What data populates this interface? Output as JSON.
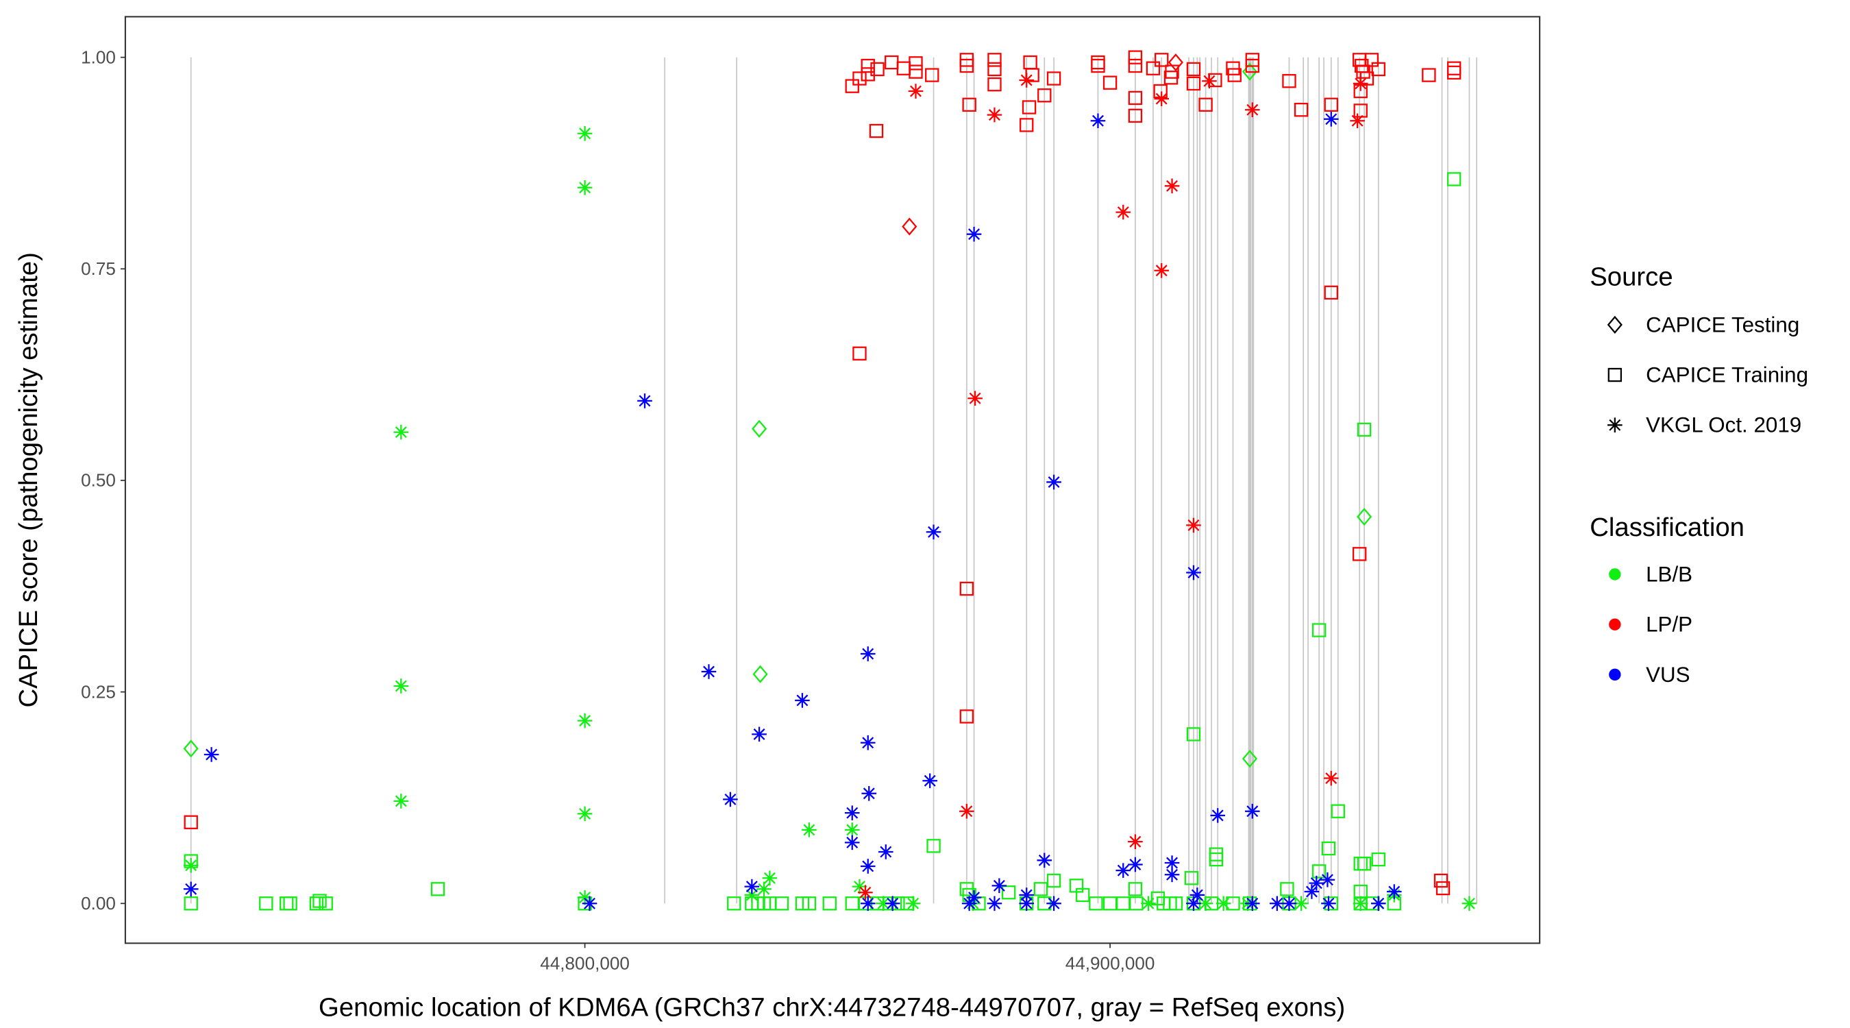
{
  "chart_data": {
    "type": "scatter",
    "title": "",
    "xlabel": "Genomic location of KDM6A (GRCh37 chrX:44732748-44970707, gray = RefSeq exons)",
    "ylabel": "CAPICE score (pathogenicity estimate)",
    "xlim": [
      44712500,
      44981800
    ],
    "ylim": [
      -0.047,
      1.048
    ],
    "x_ticks": [
      44800000,
      44900000
    ],
    "x_tick_labels": [
      "44,800,000",
      "44,900,000"
    ],
    "y_ticks": [
      0,
      0.25,
      0.5,
      0.75,
      1.0
    ],
    "y_tick_labels": [
      "0.00",
      "0.25",
      "0.50",
      "0.75",
      "1.00"
    ],
    "grid": false,
    "legend_placement": "right",
    "legend": {
      "source_title": "Source",
      "sources": [
        {
          "label": "CAPICE Testing",
          "shape": "diamond"
        },
        {
          "label": "CAPICE Training",
          "shape": "square"
        },
        {
          "label": "VKGL Oct. 2019",
          "shape": "asterisk"
        }
      ],
      "class_title": "Classification",
      "classes": [
        {
          "label": "LB/B",
          "color": "#11ee11"
        },
        {
          "label": "LP/P",
          "color": "#ff0000"
        },
        {
          "label": "VUS",
          "color": "#0000ff"
        }
      ]
    },
    "exons": [
      44725000,
      44815200,
      44828900,
      44866400,
      44872700,
      44874100,
      44884100,
      44887500,
      44889300,
      44897700,
      44904800,
      44908200,
      44909800,
      44915000,
      44915900,
      44916600,
      44917100,
      44918200,
      44919300,
      44920500,
      44923400,
      44926400,
      44926600,
      44926800,
      44927100,
      44927300,
      44934100,
      44936800,
      44937700,
      44939800,
      44940700,
      44942100,
      44943400,
      44947500,
      44948400,
      44951100,
      44963200,
      44964300,
      44968400,
      44969800
    ],
    "point_fields": [
      "position",
      "score",
      "source_index",
      "class_index"
    ],
    "points": [
      [
        44725000,
        0.183,
        0,
        0
      ],
      [
        44725000,
        0.05,
        1,
        0
      ],
      [
        44725000,
        0,
        1,
        0
      ],
      [
        44725000,
        0.045,
        2,
        0
      ],
      [
        44739300,
        0,
        1,
        0
      ],
      [
        44743200,
        0,
        1,
        0
      ],
      [
        44743900,
        0,
        1,
        0
      ],
      [
        44748900,
        0,
        1,
        0
      ],
      [
        44749500,
        0.003,
        1,
        0
      ],
      [
        44750700,
        0,
        1,
        0
      ],
      [
        44765000,
        0.557,
        2,
        0
      ],
      [
        44765000,
        0.257,
        2,
        0
      ],
      [
        44765000,
        0.121,
        2,
        0
      ],
      [
        44772000,
        0.017,
        1,
        0
      ],
      [
        44800000,
        0.91,
        2,
        0
      ],
      [
        44800000,
        0.846,
        2,
        0
      ],
      [
        44800000,
        0.216,
        2,
        0
      ],
      [
        44800000,
        0.106,
        2,
        0
      ],
      [
        44800000,
        0.007,
        2,
        0
      ],
      [
        44800000,
        0,
        1,
        0
      ],
      [
        44833200,
        0.561,
        0,
        0
      ],
      [
        44833400,
        0.271,
        0,
        0
      ],
      [
        44828400,
        0,
        1,
        0
      ],
      [
        44831800,
        0,
        1,
        0
      ],
      [
        44833000,
        0,
        1,
        0
      ],
      [
        44834100,
        0,
        1,
        0
      ],
      [
        44835200,
        0,
        1,
        0
      ],
      [
        44837500,
        0,
        1,
        0
      ],
      [
        44841400,
        0,
        1,
        0
      ],
      [
        44842700,
        0,
        1,
        0
      ],
      [
        44846600,
        0,
        1,
        0
      ],
      [
        44835200,
        0.03,
        2,
        0
      ],
      [
        44831800,
        0.01,
        2,
        0
      ],
      [
        44834100,
        0.017,
        2,
        0
      ],
      [
        44842700,
        0.087,
        2,
        0
      ],
      [
        44850900,
        0.087,
        2,
        0
      ],
      [
        44852300,
        0.02,
        2,
        0
      ],
      [
        44850900,
        0,
        1,
        0
      ],
      [
        44853400,
        0,
        1,
        0
      ],
      [
        44855700,
        0,
        1,
        0
      ],
      [
        44858000,
        0,
        1,
        0
      ],
      [
        44859600,
        0,
        1,
        0
      ],
      [
        44861400,
        0,
        1,
        0
      ],
      [
        44856800,
        0,
        2,
        0
      ],
      [
        44862500,
        0,
        2,
        0
      ],
      [
        44866400,
        0.068,
        1,
        0
      ],
      [
        44872700,
        0.017,
        1,
        0
      ],
      [
        44873200,
        0.01,
        1,
        0
      ],
      [
        44873900,
        0,
        2,
        0
      ],
      [
        44875000,
        0,
        1,
        0
      ],
      [
        44880700,
        0.013,
        1,
        0
      ],
      [
        44884100,
        0,
        1,
        0
      ],
      [
        44886800,
        0.017,
        1,
        0
      ],
      [
        44889300,
        0.027,
        1,
        0
      ],
      [
        44887500,
        0,
        1,
        0
      ],
      [
        44893600,
        0.021,
        1,
        0
      ],
      [
        44894800,
        0.01,
        1,
        0
      ],
      [
        44897300,
        0,
        1,
        0
      ],
      [
        44900000,
        0,
        1,
        0
      ],
      [
        44902500,
        0,
        1,
        0
      ],
      [
        44904800,
        0.017,
        1,
        0
      ],
      [
        44905000,
        0,
        1,
        0
      ],
      [
        44907300,
        0,
        2,
        0
      ],
      [
        44909100,
        0.006,
        1,
        0
      ],
      [
        44910200,
        0,
        1,
        0
      ],
      [
        44911400,
        0,
        1,
        0
      ],
      [
        44912500,
        0,
        1,
        0
      ],
      [
        44915500,
        0.03,
        1,
        0
      ],
      [
        44915900,
        0.2,
        1,
        0
      ],
      [
        44915900,
        0,
        1,
        0
      ],
      [
        44920200,
        0.058,
        1,
        0
      ],
      [
        44920200,
        0.052,
        1,
        0
      ],
      [
        44919300,
        0,
        1,
        0
      ],
      [
        44918200,
        0,
        2,
        0
      ],
      [
        44923400,
        0,
        1,
        0
      ],
      [
        44921600,
        0,
        2,
        0
      ],
      [
        44926600,
        0.171,
        0,
        0
      ],
      [
        44926600,
        0.983,
        0,
        0
      ],
      [
        44926600,
        0,
        1,
        0
      ],
      [
        44926200,
        0,
        2,
        0
      ],
      [
        44933700,
        0.017,
        1,
        0
      ],
      [
        44934100,
        0,
        1,
        0
      ],
      [
        44936400,
        0,
        2,
        0
      ],
      [
        44939800,
        0.323,
        1,
        0
      ],
      [
        44939800,
        0.038,
        1,
        0
      ],
      [
        44941600,
        0.065,
        1,
        0
      ],
      [
        44943400,
        0.109,
        1,
        0
      ],
      [
        44942100,
        0,
        1,
        0
      ],
      [
        44948400,
        0.56,
        1,
        0
      ],
      [
        44948400,
        0.457,
        0,
        0
      ],
      [
        44947700,
        0.047,
        1,
        0
      ],
      [
        44948400,
        0.047,
        1,
        0
      ],
      [
        44951100,
        0.052,
        1,
        0
      ],
      [
        44947700,
        0.014,
        1,
        0
      ],
      [
        44947700,
        0,
        1,
        0
      ],
      [
        44950000,
        0,
        1,
        0
      ],
      [
        44954100,
        0,
        1,
        0
      ],
      [
        44954100,
        0.01,
        2,
        0
      ],
      [
        44947700,
        0,
        2,
        0
      ],
      [
        44951100,
        0,
        2,
        0
      ],
      [
        44965500,
        0.856,
        1,
        0
      ],
      [
        44968400,
        0,
        2,
        0
      ],
      [
        44725000,
        0.096,
        1,
        1
      ],
      [
        44852300,
        0.65,
        1,
        1
      ],
      [
        44853400,
        0.013,
        2,
        1
      ],
      [
        44861800,
        0.8,
        0,
        1
      ],
      [
        44863000,
        0.96,
        2,
        1
      ],
      [
        44855500,
        0.913,
        1,
        1
      ],
      [
        44850900,
        0.966,
        1,
        1
      ],
      [
        44852300,
        0.975,
        1,
        1
      ],
      [
        44853900,
        0.99,
        1,
        1
      ],
      [
        44853900,
        0.98,
        1,
        1
      ],
      [
        44855700,
        0.986,
        1,
        1
      ],
      [
        44858400,
        0.994,
        1,
        1
      ],
      [
        44860700,
        0.987,
        1,
        1
      ],
      [
        44863000,
        0.993,
        1,
        1
      ],
      [
        44863000,
        0.983,
        1,
        1
      ],
      [
        44866100,
        0.979,
        1,
        1
      ],
      [
        44872700,
        0.997,
        1,
        1
      ],
      [
        44872700,
        0.99,
        1,
        1
      ],
      [
        44873200,
        0.944,
        1,
        1
      ],
      [
        44878000,
        0.997,
        1,
        1
      ],
      [
        44878000,
        0.986,
        1,
        1
      ],
      [
        44878000,
        0.968,
        1,
        1
      ],
      [
        44884100,
        0.92,
        1,
        1
      ],
      [
        44884600,
        0.941,
        1,
        1
      ],
      [
        44884800,
        0.994,
        1,
        1
      ],
      [
        44885200,
        0.979,
        1,
        1
      ],
      [
        44887500,
        0.955,
        1,
        1
      ],
      [
        44889300,
        0.975,
        1,
        1
      ],
      [
        44897700,
        0.994,
        1,
        1
      ],
      [
        44897700,
        0.99,
        1,
        1
      ],
      [
        44900000,
        0.97,
        1,
        1
      ],
      [
        44904800,
        1.0,
        1,
        1
      ],
      [
        44904800,
        0.99,
        1,
        1
      ],
      [
        44904800,
        0.952,
        1,
        1
      ],
      [
        44904800,
        0.931,
        1,
        1
      ],
      [
        44908200,
        0.987,
        1,
        1
      ],
      [
        44909600,
        0.96,
        1,
        1
      ],
      [
        44909800,
        0.997,
        1,
        1
      ],
      [
        44911600,
        0.976,
        1,
        1
      ],
      [
        44911800,
        0.983,
        1,
        1
      ],
      [
        44912500,
        0.994,
        0,
        1
      ],
      [
        44915900,
        0.986,
        1,
        1
      ],
      [
        44915900,
        0.969,
        1,
        1
      ],
      [
        44918200,
        0.944,
        1,
        1
      ],
      [
        44920000,
        0.973,
        1,
        1
      ],
      [
        44923400,
        0.987,
        1,
        1
      ],
      [
        44923700,
        0.979,
        1,
        1
      ],
      [
        44927100,
        0.997,
        1,
        1
      ],
      [
        44927100,
        0.99,
        1,
        1
      ],
      [
        44934100,
        0.972,
        1,
        1
      ],
      [
        44936400,
        0.938,
        1,
        1
      ],
      [
        44942100,
        0.944,
        1,
        1
      ],
      [
        44947500,
        0.997,
        1,
        1
      ],
      [
        44947900,
        0.99,
        1,
        1
      ],
      [
        44948200,
        0.983,
        1,
        1
      ],
      [
        44948900,
        0.975,
        1,
        1
      ],
      [
        44949800,
        0.997,
        1,
        1
      ],
      [
        44951100,
        0.986,
        1,
        1
      ],
      [
        44947700,
        0.96,
        1,
        1
      ],
      [
        44947700,
        0.937,
        1,
        1
      ],
      [
        44960700,
        0.979,
        1,
        1
      ],
      [
        44965500,
        0.987,
        1,
        1
      ],
      [
        44965500,
        0.982,
        1,
        1
      ],
      [
        44963000,
        0.027,
        1,
        1
      ],
      [
        44963400,
        0.018,
        1,
        1
      ],
      [
        44872700,
        0.372,
        1,
        1
      ],
      [
        44872700,
        0.221,
        1,
        1
      ],
      [
        44874300,
        0.597,
        2,
        1
      ],
      [
        44872700,
        0.109,
        2,
        1
      ],
      [
        44884100,
        0.973,
        2,
        1
      ],
      [
        44878000,
        0.932,
        2,
        1
      ],
      [
        44902500,
        0.817,
        2,
        1
      ],
      [
        44911800,
        0.848,
        2,
        1
      ],
      [
        44909800,
        0.748,
        2,
        1
      ],
      [
        44909800,
        0.951,
        2,
        1
      ],
      [
        44918900,
        0.972,
        2,
        1
      ],
      [
        44927100,
        0.938,
        2,
        1
      ],
      [
        44915900,
        0.447,
        2,
        1
      ],
      [
        44904800,
        0.073,
        2,
        1
      ],
      [
        44942100,
        0.148,
        2,
        1
      ],
      [
        44947100,
        0.925,
        2,
        1
      ],
      [
        44947700,
        0.969,
        2,
        1
      ],
      [
        44942100,
        0.722,
        1,
        1
      ],
      [
        44947500,
        0.413,
        1,
        1
      ],
      [
        44725000,
        0.017,
        2,
        2
      ],
      [
        44728900,
        0.176,
        2,
        2
      ],
      [
        44800900,
        0,
        2,
        2
      ],
      [
        44811400,
        0.594,
        2,
        2
      ],
      [
        44823600,
        0.274,
        2,
        2
      ],
      [
        44827700,
        0.123,
        2,
        2
      ],
      [
        44833200,
        0.2,
        2,
        2
      ],
      [
        44831800,
        0.02,
        2,
        2
      ],
      [
        44841400,
        0.24,
        2,
        2
      ],
      [
        44853900,
        0.295,
        2,
        2
      ],
      [
        44853900,
        0.19,
        2,
        2
      ],
      [
        44854100,
        0.13,
        2,
        2
      ],
      [
        44850900,
        0.107,
        2,
        2
      ],
      [
        44850900,
        0.072,
        2,
        2
      ],
      [
        44853900,
        0.044,
        2,
        2
      ],
      [
        44857300,
        0.061,
        2,
        2
      ],
      [
        44858600,
        0,
        2,
        2
      ],
      [
        44853900,
        0,
        2,
        2
      ],
      [
        44866400,
        0.439,
        2,
        2
      ],
      [
        44865700,
        0.145,
        2,
        2
      ],
      [
        44874100,
        0.791,
        2,
        2
      ],
      [
        44873200,
        0,
        2,
        2
      ],
      [
        44874100,
        0.007,
        2,
        2
      ],
      [
        44878900,
        0.021,
        2,
        2
      ],
      [
        44878000,
        0,
        2,
        2
      ],
      [
        44884100,
        0.01,
        2,
        2
      ],
      [
        44884100,
        0,
        2,
        2
      ],
      [
        44887500,
        0.051,
        2,
        2
      ],
      [
        44889300,
        0,
        2,
        2
      ],
      [
        44889300,
        0.498,
        2,
        2
      ],
      [
        44897700,
        0.925,
        2,
        2
      ],
      [
        44902500,
        0.039,
        2,
        2
      ],
      [
        44904800,
        0.046,
        2,
        2
      ],
      [
        44911800,
        0.048,
        2,
        2
      ],
      [
        44911800,
        0.034,
        2,
        2
      ],
      [
        44915900,
        0.391,
        2,
        2
      ],
      [
        44916600,
        0.01,
        2,
        2
      ],
      [
        44920500,
        0.104,
        2,
        2
      ],
      [
        44927100,
        0.109,
        2,
        2
      ],
      [
        44927100,
        0,
        2,
        2
      ],
      [
        44915900,
        0,
        2,
        2
      ],
      [
        44931800,
        0,
        2,
        2
      ],
      [
        44934100,
        0,
        2,
        2
      ],
      [
        44938400,
        0.014,
        2,
        2
      ],
      [
        44939300,
        0.024,
        2,
        2
      ],
      [
        44941400,
        0.028,
        2,
        2
      ],
      [
        44941600,
        0,
        2,
        2
      ],
      [
        44942100,
        0.927,
        2,
        2
      ],
      [
        44951100,
        0,
        2,
        2
      ],
      [
        44954100,
        0.014,
        2,
        2
      ]
    ]
  }
}
